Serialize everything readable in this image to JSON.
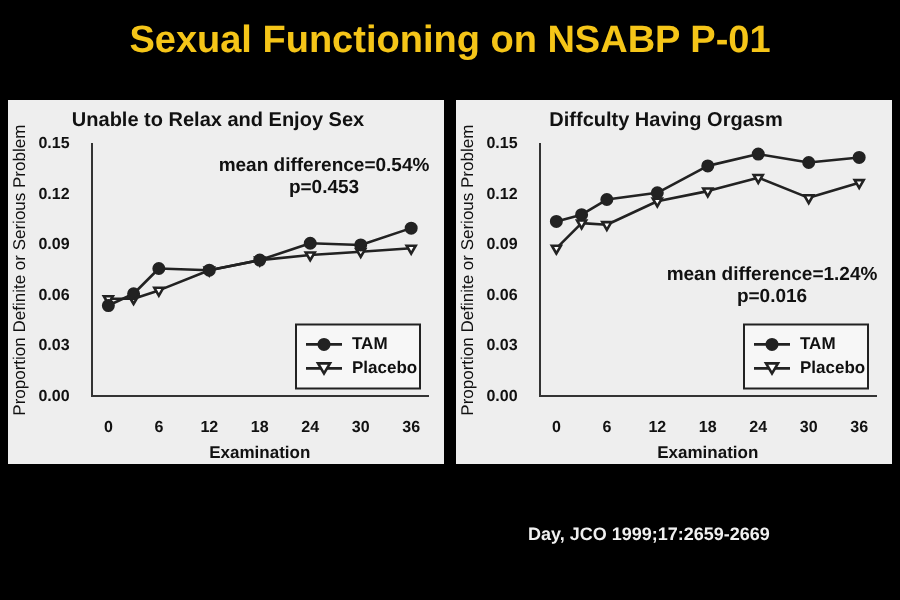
{
  "chart_data": [
    {
      "type": "line",
      "title": "Sexual Functioning on NSABP P-01",
      "subtitle": "Unable to Relax and Enjoy Sex",
      "xlabel": "Examination",
      "ylabel": "Proportion Definite or Serious Problem",
      "x": [
        0,
        3,
        6,
        12,
        18,
        24,
        30,
        36
      ],
      "series": [
        {
          "name": "TAM",
          "color": "#222222",
          "marker": "circle",
          "values": [
            0.054,
            0.061,
            0.076,
            0.075,
            0.081,
            0.091,
            0.09,
            0.1
          ]
        },
        {
          "name": "Placebo",
          "color": "#222222",
          "marker": "triangle",
          "values": [
            0.058,
            0.058,
            0.063,
            0.075,
            0.081,
            0.084,
            0.086,
            0.088
          ]
        }
      ],
      "xlim": [
        -2,
        38
      ],
      "xticks": [
        0,
        6,
        12,
        18,
        24,
        30,
        36
      ],
      "ylim": [
        0,
        0.15
      ],
      "yticks": [
        {
          "value": 0,
          "label": "0.00"
        },
        0.03,
        0.06,
        0.09,
        0.12,
        0.15
      ],
      "grid": false,
      "legend": "bottom right",
      "annotations": [
        "mean difference=0.54%\np=0.453"
      ]
    },
    {
      "type": "line",
      "subtitle": "Diffculty Having Orgasm",
      "xlabel": "Examination",
      "ylabel": "Proportion Definite or Serious Problem",
      "x": [
        0,
        3,
        6,
        12,
        18,
        24,
        30,
        36
      ],
      "series": [
        {
          "name": "TAM",
          "color": "#222222",
          "marker": "circle",
          "values": [
            0.104,
            0.108,
            0.117,
            0.121,
            0.137,
            0.144,
            0.139,
            0.142
          ]
        },
        {
          "name": "Placebo",
          "color": "#222222",
          "marker": "triangle",
          "values": [
            0.088,
            0.103,
            0.102,
            0.116,
            0.122,
            0.13,
            0.118,
            0.127
          ]
        }
      ],
      "xlim": [
        -2,
        38
      ],
      "xticks": [
        0,
        6,
        12,
        18,
        24,
        30,
        36
      ],
      "ylim": [
        0,
        0.15
      ],
      "yticks": [
        {
          "value": 0,
          "label": "0.00"
        },
        0.03,
        0.06,
        0.09,
        0.12,
        0.15
      ],
      "grid": false,
      "legend": "bottom right",
      "annotations": [
        "mean difference=1.24%\np=0.016",
        "Day, JCO 1999;17:2659-2669"
      ]
    }
  ]
}
